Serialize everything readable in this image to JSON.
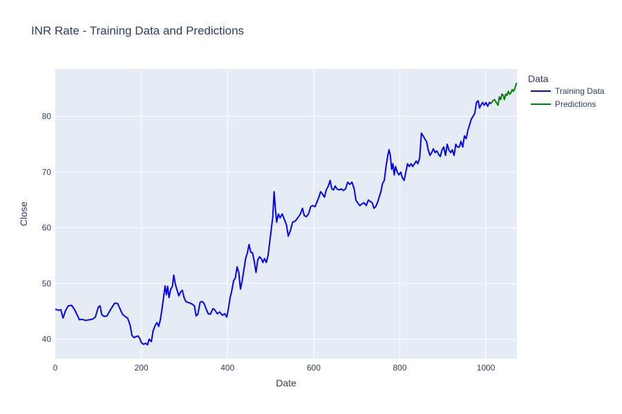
{
  "chart_data": {
    "type": "line",
    "title": "INR Rate - Training Data and Predictions",
    "xlabel": "Date",
    "ylabel": "Close",
    "xlim": [
      0,
      1072
    ],
    "ylim": [
      36.5,
      88.5
    ],
    "xticks": [
      0,
      200,
      400,
      600,
      800,
      1000
    ],
    "yticks": [
      40,
      50,
      60,
      70,
      80
    ],
    "grid": true,
    "legend_title": "Data",
    "legend_position": "right",
    "plot_bg": "#e5ecf6",
    "series": [
      {
        "name": "Training Data",
        "color": "#0000ff",
        "points": [
          [
            0,
            45.4
          ],
          [
            8,
            45.2
          ],
          [
            13,
            45.3
          ],
          [
            18,
            43.8
          ],
          [
            24,
            45.2
          ],
          [
            30,
            46.0
          ],
          [
            38,
            46.1
          ],
          [
            45,
            45.3
          ],
          [
            50,
            44.5
          ],
          [
            56,
            43.5
          ],
          [
            62,
            43.6
          ],
          [
            70,
            43.4
          ],
          [
            78,
            43.5
          ],
          [
            86,
            43.6
          ],
          [
            93,
            44.0
          ],
          [
            100,
            45.8
          ],
          [
            104,
            46.0
          ],
          [
            108,
            44.4
          ],
          [
            114,
            44.1
          ],
          [
            120,
            44.2
          ],
          [
            126,
            45.0
          ],
          [
            132,
            45.8
          ],
          [
            138,
            46.5
          ],
          [
            145,
            46.4
          ],
          [
            150,
            45.5
          ],
          [
            156,
            44.5
          ],
          [
            162,
            44.1
          ],
          [
            168,
            43.8
          ],
          [
            174,
            42.5
          ],
          [
            178,
            40.7
          ],
          [
            183,
            40.3
          ],
          [
            188,
            40.5
          ],
          [
            192,
            40.6
          ],
          [
            196,
            40.2
          ],
          [
            200,
            39.4
          ],
          [
            205,
            39.1
          ],
          [
            210,
            39.3
          ],
          [
            214,
            39.0
          ],
          [
            218,
            40.0
          ],
          [
            223,
            39.6
          ],
          [
            227,
            41.5
          ],
          [
            232,
            42.5
          ],
          [
            236,
            43.0
          ],
          [
            240,
            42.3
          ],
          [
            244,
            43.5
          ],
          [
            248,
            45.5
          ],
          [
            252,
            47.8
          ],
          [
            255,
            49.6
          ],
          [
            258,
            48.0
          ],
          [
            261,
            49.5
          ],
          [
            264,
            47.5
          ],
          [
            268,
            49.0
          ],
          [
            272,
            49.5
          ],
          [
            275,
            51.5
          ],
          [
            279,
            49.8
          ],
          [
            283,
            48.8
          ],
          [
            287,
            47.8
          ],
          [
            291,
            48.5
          ],
          [
            295,
            48.8
          ],
          [
            299,
            47.5
          ],
          [
            303,
            46.8
          ],
          [
            308,
            46.6
          ],
          [
            313,
            46.5
          ],
          [
            318,
            46.3
          ],
          [
            323,
            46.0
          ],
          [
            327,
            44.2
          ],
          [
            331,
            44.5
          ],
          [
            336,
            46.6
          ],
          [
            340,
            46.8
          ],
          [
            345,
            46.5
          ],
          [
            350,
            45.5
          ],
          [
            355,
            44.6
          ],
          [
            360,
            44.5
          ],
          [
            366,
            45.5
          ],
          [
            370,
            45.3
          ],
          [
            376,
            44.6
          ],
          [
            382,
            44.9
          ],
          [
            388,
            44.3
          ],
          [
            393,
            44.6
          ],
          [
            398,
            44.0
          ],
          [
            402,
            45.5
          ],
          [
            406,
            47.5
          ],
          [
            410,
            48.8
          ],
          [
            414,
            50.5
          ],
          [
            418,
            51.0
          ],
          [
            422,
            53.0
          ],
          [
            426,
            52.0
          ],
          [
            430,
            49.0
          ],
          [
            434,
            50.5
          ],
          [
            438,
            52.5
          ],
          [
            442,
            54.5
          ],
          [
            446,
            55.5
          ],
          [
            450,
            57.0
          ],
          [
            454,
            55.6
          ],
          [
            458,
            55.5
          ],
          [
            462,
            54.0
          ],
          [
            466,
            52.0
          ],
          [
            470,
            54.2
          ],
          [
            474,
            54.8
          ],
          [
            478,
            54.5
          ],
          [
            482,
            53.8
          ],
          [
            486,
            54.5
          ],
          [
            490,
            53.8
          ],
          [
            494,
            55.0
          ],
          [
            498,
            57.5
          ],
          [
            502,
            60.0
          ],
          [
            505,
            62.0
          ],
          [
            508,
            66.5
          ],
          [
            511,
            63.5
          ],
          [
            514,
            61.0
          ],
          [
            518,
            62.5
          ],
          [
            522,
            61.8
          ],
          [
            527,
            62.5
          ],
          [
            532,
            61.5
          ],
          [
            537,
            60.5
          ],
          [
            541,
            58.5
          ],
          [
            546,
            59.5
          ],
          [
            551,
            61.0
          ],
          [
            557,
            61.2
          ],
          [
            563,
            61.8
          ],
          [
            569,
            62.5
          ],
          [
            574,
            63.5
          ],
          [
            578,
            62.2
          ],
          [
            583,
            62.0
          ],
          [
            588,
            62.5
          ],
          [
            593,
            63.8
          ],
          [
            598,
            64.0
          ],
          [
            603,
            63.8
          ],
          [
            607,
            64.5
          ],
          [
            612,
            65.5
          ],
          [
            616,
            66.5
          ],
          [
            621,
            66.0
          ],
          [
            625,
            65.5
          ],
          [
            629,
            66.8
          ],
          [
            634,
            67.5
          ],
          [
            638,
            68.5
          ],
          [
            642,
            67.0
          ],
          [
            646,
            66.8
          ],
          [
            650,
            67.5
          ],
          [
            654,
            67.0
          ],
          [
            659,
            66.8
          ],
          [
            664,
            67.0
          ],
          [
            669,
            66.7
          ],
          [
            674,
            67.0
          ],
          [
            679,
            68.2
          ],
          [
            684,
            67.8
          ],
          [
            689,
            68.2
          ],
          [
            694,
            67.0
          ],
          [
            698,
            65.0
          ],
          [
            702,
            64.5
          ],
          [
            707,
            64.0
          ],
          [
            712,
            64.3
          ],
          [
            717,
            64.5
          ],
          [
            722,
            64.0
          ],
          [
            727,
            65.0
          ],
          [
            732,
            64.7
          ],
          [
            736,
            64.5
          ],
          [
            740,
            63.5
          ],
          [
            744,
            63.8
          ],
          [
            748,
            64.5
          ],
          [
            752,
            65.5
          ],
          [
            756,
            66.5
          ],
          [
            760,
            68.0
          ],
          [
            764,
            68.5
          ],
          [
            768,
            71.0
          ],
          [
            772,
            73.0
          ],
          [
            775,
            74.0
          ],
          [
            778,
            73.0
          ],
          [
            781,
            70.5
          ],
          [
            784,
            71.5
          ],
          [
            787,
            69.5
          ],
          [
            790,
            71.0
          ],
          [
            794,
            70.0
          ],
          [
            798,
            69.5
          ],
          [
            802,
            70.0
          ],
          [
            806,
            69.0
          ],
          [
            810,
            68.5
          ],
          [
            814,
            70.0
          ],
          [
            818,
            71.5
          ],
          [
            822,
            71.0
          ],
          [
            826,
            71.5
          ],
          [
            830,
            71.0
          ],
          [
            834,
            71.5
          ],
          [
            838,
            72.0
          ],
          [
            842,
            71.5
          ],
          [
            846,
            72.5
          ],
          [
            850,
            77.0
          ],
          [
            854,
            76.5
          ],
          [
            858,
            76.0
          ],
          [
            862,
            75.5
          ],
          [
            866,
            74.0
          ],
          [
            870,
            73.0
          ],
          [
            874,
            73.5
          ],
          [
            878,
            74.2
          ],
          [
            882,
            73.5
          ],
          [
            886,
            73.8
          ],
          [
            890,
            73.2
          ],
          [
            894,
            72.8
          ],
          [
            898,
            74.0
          ],
          [
            902,
            74.5
          ],
          [
            906,
            73.0
          ],
          [
            910,
            75.0
          ],
          [
            914,
            74.0
          ],
          [
            918,
            73.5
          ],
          [
            922,
            74.0
          ],
          [
            926,
            73.0
          ],
          [
            930,
            75.0
          ],
          [
            934,
            74.5
          ],
          [
            938,
            74.5
          ],
          [
            942,
            75.5
          ],
          [
            946,
            74.5
          ],
          [
            950,
            76.5
          ],
          [
            954,
            76.0
          ],
          [
            958,
            77.5
          ],
          [
            962,
            78.5
          ],
          [
            966,
            79.5
          ],
          [
            970,
            80.0
          ],
          [
            974,
            80.5
          ],
          [
            978,
            82.5
          ],
          [
            982,
            82.8
          ],
          [
            985,
            81.5
          ],
          [
            988,
            82.0
          ],
          [
            992,
            82.5
          ],
          [
            996,
            82.0
          ],
          [
            1000,
            82.5
          ],
          [
            1004,
            81.8
          ],
          [
            1008,
            82.5
          ],
          [
            1012,
            82.3
          ]
        ]
      },
      {
        "name": "Predictions",
        "color": "#008000",
        "points": [
          [
            1012,
            82.3
          ],
          [
            1016,
            82.8
          ],
          [
            1020,
            83.0
          ],
          [
            1024,
            82.5
          ],
          [
            1028,
            82.0
          ],
          [
            1031,
            83.5
          ],
          [
            1034,
            83.0
          ],
          [
            1037,
            84.0
          ],
          [
            1040,
            83.8
          ],
          [
            1043,
            83.0
          ],
          [
            1046,
            84.0
          ],
          [
            1049,
            83.8
          ],
          [
            1052,
            84.5
          ],
          [
            1055,
            84.0
          ],
          [
            1058,
            84.2
          ],
          [
            1061,
            84.8
          ],
          [
            1064,
            84.5
          ],
          [
            1067,
            85.0
          ],
          [
            1070,
            85.8
          ],
          [
            1072,
            86.0
          ]
        ]
      }
    ]
  }
}
